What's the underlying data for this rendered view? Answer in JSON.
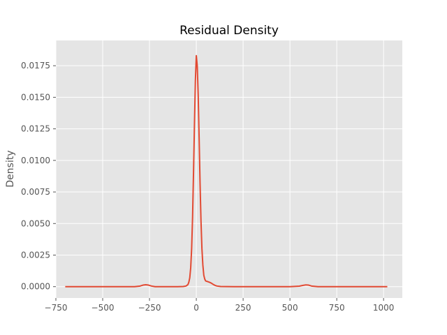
{
  "chart_data": {
    "type": "line",
    "title": "Residual Density",
    "xlabel": "",
    "ylabel": "Density",
    "xlim": [
      -750,
      1100
    ],
    "ylim": [
      -0.0009,
      0.0195
    ],
    "xticks": [
      -750,
      -500,
      -250,
      0,
      250,
      500,
      750,
      1000
    ],
    "xtick_labels": [
      "−750",
      "−500",
      "−250",
      "0",
      "250",
      "500",
      "750",
      "1000"
    ],
    "yticks": [
      0.0,
      0.0025,
      0.005,
      0.0075,
      0.01,
      0.0125,
      0.015,
      0.0175
    ],
    "ytick_labels": [
      "0.0000",
      "0.0025",
      "0.0050",
      "0.0075",
      "0.0100",
      "0.0125",
      "0.0150",
      "0.0175"
    ],
    "grid": true,
    "background": "#e5e5e5",
    "series": [
      {
        "color": "#e24a33",
        "x": [
          -700,
          -600,
          -500,
          -400,
          -330,
          -300,
          -285,
          -270,
          -255,
          -240,
          -220,
          -150,
          -100,
          -70,
          -55,
          -45,
          -40,
          -35,
          -30,
          -25,
          -20,
          -15,
          -10,
          -5,
          0,
          5,
          10,
          15,
          20,
          25,
          30,
          35,
          40,
          45,
          50,
          60,
          70,
          80,
          90,
          100,
          110,
          130,
          200,
          300,
          400,
          500,
          550,
          570,
          585,
          600,
          615,
          650,
          750,
          900,
          1020
        ],
        "y": [
          0.0,
          0.0,
          0.0,
          0.0,
          0.0,
          5e-05,
          0.00012,
          0.00015,
          0.00012,
          5e-05,
          0.0,
          0.0,
          0.0,
          1e-05,
          5e-05,
          0.00016,
          0.00035,
          0.0007,
          0.0015,
          0.003,
          0.0055,
          0.009,
          0.0128,
          0.0163,
          0.0183,
          0.0175,
          0.0152,
          0.0118,
          0.0082,
          0.0052,
          0.003,
          0.0017,
          0.0009,
          0.0006,
          0.00045,
          0.0004,
          0.00035,
          0.00028,
          0.00018,
          0.0001,
          5e-05,
          1e-05,
          0.0,
          0.0,
          0.0,
          0.0,
          4e-05,
          0.0001,
          0.00014,
          0.00012,
          5e-05,
          0.0,
          0.0,
          0.0,
          0.0
        ]
      }
    ]
  }
}
